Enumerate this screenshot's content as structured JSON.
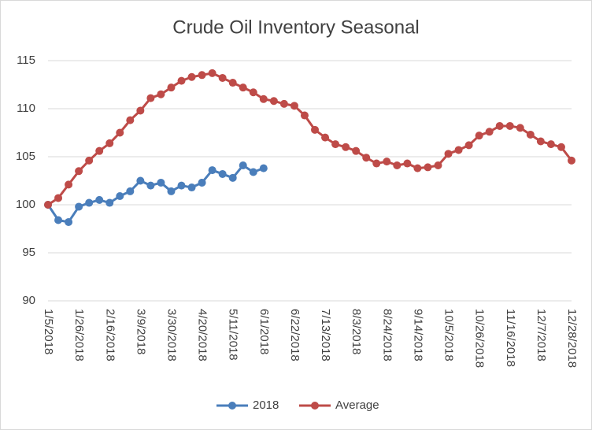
{
  "chart_data": {
    "type": "line",
    "title": "Crude Oil Inventory Seasonal",
    "categories": [
      "1/5/2018",
      null,
      null,
      "1/26/2018",
      null,
      null,
      "2/16/2018",
      null,
      null,
      "3/9/2018",
      null,
      null,
      "3/30/2018",
      null,
      null,
      "4/20/2018",
      null,
      null,
      "5/11/2018",
      null,
      null,
      "6/1/2018",
      null,
      null,
      "6/22/2018",
      null,
      null,
      "7/13/2018",
      null,
      null,
      "8/3/2018",
      null,
      null,
      "8/24/2018",
      null,
      null,
      "9/14/2018",
      null,
      null,
      "10/5/2018",
      null,
      null,
      "10/26/2018",
      null,
      null,
      "11/16/2018",
      null,
      null,
      "12/7/2018",
      null,
      null,
      "12/28/2018"
    ],
    "series": [
      {
        "name": "2018",
        "color": "#4a7ebb",
        "values": [
          100,
          98.4,
          98.2,
          99.8,
          100.2,
          100.5,
          100.2,
          100.9,
          101.4,
          102.5,
          102.0,
          102.3,
          101.4,
          102.0,
          101.8,
          102.3,
          103.6,
          103.2,
          102.8,
          104.1,
          103.4,
          103.8,
          null,
          null,
          null,
          null,
          null,
          null,
          null,
          null,
          null,
          null,
          null,
          null,
          null,
          null,
          null,
          null,
          null,
          null,
          null,
          null,
          null,
          null,
          null,
          null,
          null,
          null,
          null,
          null,
          null,
          null
        ]
      },
      {
        "name": "Average",
        "color": "#be4b48",
        "values": [
          100,
          100.7,
          102.1,
          103.5,
          104.6,
          105.6,
          106.4,
          107.5,
          108.8,
          109.8,
          111.1,
          111.5,
          112.2,
          112.9,
          113.3,
          113.5,
          113.7,
          113.2,
          112.7,
          112.2,
          111.7,
          111.0,
          110.8,
          110.5,
          110.3,
          109.3,
          107.8,
          107.0,
          106.3,
          106.0,
          105.6,
          104.9,
          104.3,
          104.5,
          104.1,
          104.3,
          103.8,
          103.9,
          104.1,
          105.3,
          105.7,
          106.2,
          107.2,
          107.6,
          108.2,
          108.2,
          108.0,
          107.3,
          106.6,
          106.3,
          106.0,
          104.6
        ]
      }
    ],
    "ylim": [
      90,
      115
    ],
    "yticks": [
      90,
      95,
      100,
      105,
      110,
      115
    ],
    "grid": true,
    "legend": "bottom"
  }
}
